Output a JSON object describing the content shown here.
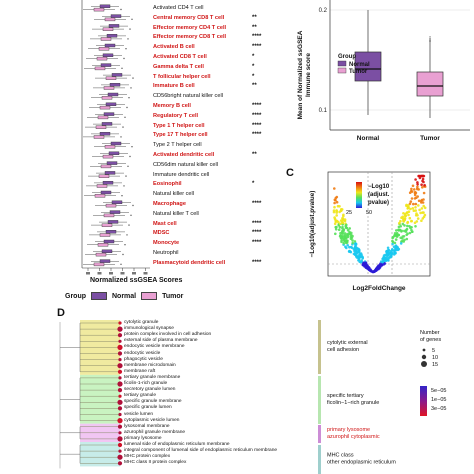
{
  "panelA": {
    "cell_types": [
      {
        "label": "Activated CD4 T cell",
        "red": false,
        "sig": ""
      },
      {
        "label": "Central memory CD8 T cell",
        "red": true,
        "sig": "**"
      },
      {
        "label": "Effector memory CD4 T cell",
        "red": true,
        "sig": "**"
      },
      {
        "label": "Effector memory CD8 T cell",
        "red": true,
        "sig": "****"
      },
      {
        "label": "Activated B cell",
        "red": true,
        "sig": "****"
      },
      {
        "label": "Activated CD8 T cell",
        "red": true,
        "sig": "*"
      },
      {
        "label": "Gamma delta T cell",
        "red": true,
        "sig": "*"
      },
      {
        "label": "T follicular helper cell",
        "red": true,
        "sig": "*"
      },
      {
        "label": "Immature  B cell",
        "red": true,
        "sig": "**"
      },
      {
        "label": "CD56bright natural killer cell",
        "red": false,
        "sig": ""
      },
      {
        "label": "Memory B cell",
        "red": true,
        "sig": "****"
      },
      {
        "label": "Regulatory T cell",
        "red": true,
        "sig": "****"
      },
      {
        "label": "Type 1 T helper cell",
        "red": true,
        "sig": "****"
      },
      {
        "label": "Type 17 T helper cell",
        "red": true,
        "sig": "****"
      },
      {
        "label": "Type 2 T helper cell",
        "red": false,
        "sig": ""
      },
      {
        "label": "Activated dendritic cell",
        "red": true,
        "sig": "**"
      },
      {
        "label": "CD56dim natural killer cell",
        "red": false,
        "sig": ""
      },
      {
        "label": "Immature dendritic cell",
        "red": false,
        "sig": ""
      },
      {
        "label": "Eosinophil",
        "red": true,
        "sig": "*"
      },
      {
        "label": "Natural killer cell",
        "red": false,
        "sig": ""
      },
      {
        "label": "Macrophage",
        "red": true,
        "sig": "****"
      },
      {
        "label": "Natural killer T cell",
        "red": false,
        "sig": ""
      },
      {
        "label": "Mast cell",
        "red": true,
        "sig": "****"
      },
      {
        "label": "MDSC",
        "red": true,
        "sig": "****"
      },
      {
        "label": "Monocyte",
        "red": true,
        "sig": "****"
      },
      {
        "label": "Neutrophil",
        "red": false,
        "sig": ""
      },
      {
        "label": "Plasmacytoid dendritic cell",
        "red": true,
        "sig": "****"
      }
    ],
    "axis_label": "Normalized ssGSEA Scores",
    "legend": {
      "title": "Group",
      "normal": "Normal",
      "tumor": "Tumor"
    },
    "colors": {
      "normal": "#7b4fa3",
      "tumor": "#e9a0d2",
      "sig_red": "#d01616"
    }
  },
  "panelB": {
    "chart_data": {
      "type": "box",
      "title": "",
      "xlabel": "",
      "ylabel": "Mean of Normalized ssGSEA Immune score",
      "categories": [
        "Normal",
        "Tumor"
      ],
      "ylim": [
        0.08,
        0.21
      ],
      "y_ticks": [
        "0.1",
        "0.2"
      ],
      "series": [
        {
          "name": "Normal",
          "q1": 0.129,
          "median": 0.141,
          "q3": 0.158,
          "whisker_low": 0.095,
          "whisker_high": 0.2
        },
        {
          "name": "Tumor",
          "q1": 0.114,
          "median": 0.124,
          "q3": 0.138,
          "whisker_low": 0.092,
          "whisker_high": 0.17
        }
      ],
      "legend": {
        "title": "Group",
        "entries": [
          "Normal",
          "Tumor"
        ]
      }
    },
    "y_label_line1": "Mean of Normalized ssGSEA",
    "y_label_line2": "Immune score",
    "sig_mark": "i"
  },
  "panelC": {
    "letter": "C",
    "chart_data": {
      "type": "scatter",
      "title": "",
      "xlabel": "Log2FoldChange",
      "ylabel": "−Log10(adjust.pvalue)",
      "legend_title_line1": "−Log10",
      "legend_title_line2": "(adjust.",
      "legend_title_line3": "pvalue)",
      "legend_ticks": [
        "50",
        "25"
      ],
      "colorscale": [
        "#2b1bd6",
        "#19c8f0",
        "#55e05a",
        "#f0e61a",
        "#f07b12",
        "#d81010"
      ]
    }
  },
  "panelD": {
    "letter": "D",
    "go_terms": [
      "cytolytic granule",
      "immunological synapse",
      "protein complex involved in cell adhesion",
      "external side of plasma membrane",
      "endocytic vesicle membrane",
      "endocytic vesicle",
      "phagocytic vesicle",
      "membrane microdomain",
      "membrane raft",
      "tertiary granule membrane",
      "ficolin-1-rich granule",
      "secretory granule lumen",
      "tertiary granule",
      "specific granule membrane",
      "specific granule lumen",
      "vesicle lumen",
      "cytoplasmic vesicle lumen",
      "lysosomal membrane",
      "azurophil granule membrane",
      "primary lysosome",
      "lumenal side of endoplasmic reticulum membrane",
      "integral component of lumenal side of endoplasmic reticulum membrane",
      "MHC protein complex",
      "MHC class II protein complex"
    ],
    "cluster_labels": [
      {
        "line1": "cytolytic external",
        "line2": "cell adhesion",
        "color": "#111111"
      },
      {
        "line1": "specific tertiary",
        "line2": "ficolin−1−rich granule",
        "color": "#111111"
      },
      {
        "line1": "primary lysosome",
        "line2": "azurophil cytoplasmic",
        "color": "#d01616"
      },
      {
        "line1": "MHC class",
        "line2": "other endoplasmic reticulum",
        "color": "#111111"
      }
    ],
    "legend_size_title_line1": "Number",
    "legend_size_title_line2": "of genes",
    "legend_size_values": [
      "5",
      "10",
      "15"
    ],
    "legend_p_ticks": [
      "5e−05",
      "1e−05",
      "3e−05"
    ]
  }
}
